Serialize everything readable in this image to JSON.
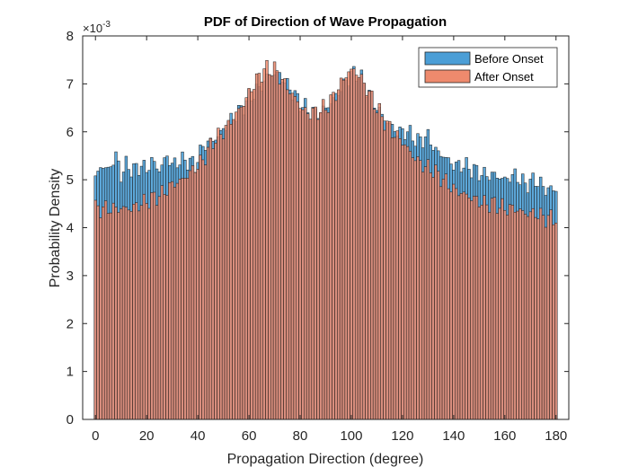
{
  "chart_data": {
    "type": "bar",
    "title": "PDF of Direction of Wave Propagation",
    "xlabel": "Propagation Direction (degree)",
    "ylabel": "Probability Density",
    "exponent_label": "×10",
    "exponent_power": "-3",
    "xlim": [
      -5,
      185
    ],
    "ylim": [
      0,
      8
    ],
    "x_ticks": [
      0,
      20,
      40,
      60,
      80,
      100,
      120,
      140,
      160,
      180
    ],
    "y_ticks": [
      0,
      1,
      2,
      3,
      4,
      5,
      6,
      7,
      8
    ],
    "bin_width": 1,
    "legend_position": "top-right",
    "anchors": {
      "before": [
        [
          0,
          5.0
        ],
        [
          2,
          5.3
        ],
        [
          5,
          5.2
        ],
        [
          8,
          5.5
        ],
        [
          10,
          5.1
        ],
        [
          12,
          5.3
        ],
        [
          15,
          5.2
        ],
        [
          18,
          5.3
        ],
        [
          20,
          5.2
        ],
        [
          22,
          5.4
        ],
        [
          25,
          5.2
        ],
        [
          28,
          5.5
        ],
        [
          30,
          5.3
        ],
        [
          33,
          5.4
        ],
        [
          36,
          5.4
        ],
        [
          39,
          5.3
        ],
        [
          42,
          5.7
        ],
        [
          45,
          5.8
        ],
        [
          48,
          5.9
        ],
        [
          52,
          6.2
        ],
        [
          56,
          6.4
        ],
        [
          60,
          6.7
        ],
        [
          64,
          6.9
        ],
        [
          68,
          7.2
        ],
        [
          72,
          7.2
        ],
        [
          76,
          6.9
        ],
        [
          80,
          6.6
        ],
        [
          84,
          6.4
        ],
        [
          88,
          6.4
        ],
        [
          92,
          6.6
        ],
        [
          96,
          6.9
        ],
        [
          100,
          7.2
        ],
        [
          103,
          7.2
        ],
        [
          106,
          6.9
        ],
        [
          110,
          6.5
        ],
        [
          114,
          6.2
        ],
        [
          118,
          6.0
        ],
        [
          122,
          6.0
        ],
        [
          126,
          5.8
        ],
        [
          130,
          5.9
        ],
        [
          133,
          5.6
        ],
        [
          136,
          5.5
        ],
        [
          140,
          5.3
        ],
        [
          144,
          5.3
        ],
        [
          148,
          5.2
        ],
        [
          152,
          5.1
        ],
        [
          156,
          5.1
        ],
        [
          160,
          5.0
        ],
        [
          164,
          5.1
        ],
        [
          168,
          4.9
        ],
        [
          172,
          5.0
        ],
        [
          176,
          4.8
        ],
        [
          180,
          4.8
        ]
      ],
      "after": [
        [
          0,
          4.4
        ],
        [
          3,
          4.4
        ],
        [
          6,
          4.4
        ],
        [
          10,
          4.4
        ],
        [
          14,
          4.4
        ],
        [
          18,
          4.5
        ],
        [
          22,
          4.6
        ],
        [
          26,
          4.7
        ],
        [
          30,
          4.9
        ],
        [
          34,
          5.0
        ],
        [
          38,
          5.2
        ],
        [
          42,
          5.4
        ],
        [
          46,
          5.8
        ],
        [
          50,
          6.0
        ],
        [
          54,
          6.3
        ],
        [
          58,
          6.6
        ],
        [
          62,
          7.0
        ],
        [
          66,
          7.3
        ],
        [
          70,
          7.3
        ],
        [
          74,
          7.0
        ],
        [
          78,
          6.7
        ],
        [
          82,
          6.4
        ],
        [
          86,
          6.4
        ],
        [
          90,
          6.5
        ],
        [
          94,
          6.8
        ],
        [
          98,
          7.2
        ],
        [
          101,
          7.3
        ],
        [
          104,
          7.1
        ],
        [
          108,
          6.7
        ],
        [
          112,
          6.3
        ],
        [
          116,
          6.0
        ],
        [
          120,
          5.8
        ],
        [
          124,
          5.5
        ],
        [
          128,
          5.3
        ],
        [
          132,
          5.2
        ],
        [
          136,
          5.0
        ],
        [
          140,
          4.8
        ],
        [
          144,
          4.7
        ],
        [
          148,
          4.6
        ],
        [
          152,
          4.5
        ],
        [
          156,
          4.5
        ],
        [
          160,
          4.4
        ],
        [
          164,
          4.4
        ],
        [
          168,
          4.3
        ],
        [
          172,
          4.3
        ],
        [
          176,
          4.2
        ],
        [
          180,
          4.2
        ]
      ]
    },
    "series": [
      {
        "name": "Before Onset",
        "color": "#4b9ed6",
        "opacity": 0.9
      },
      {
        "name": "After Onset",
        "color": "#ee8a6d",
        "opacity": 0.85
      }
    ]
  }
}
